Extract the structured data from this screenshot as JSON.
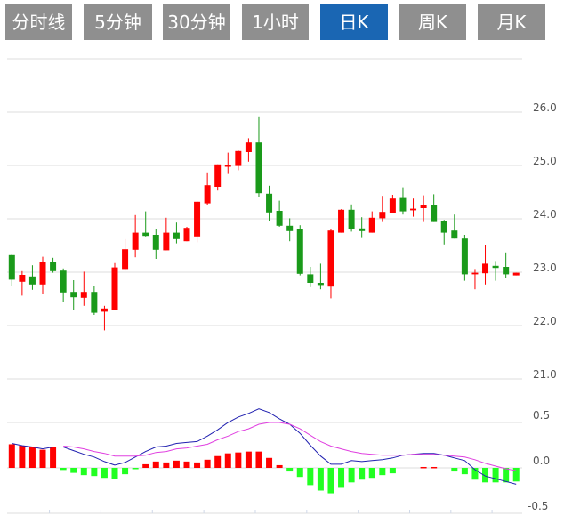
{
  "tabs": [
    {
      "label": "分时线",
      "active": false
    },
    {
      "label": "5分钟",
      "active": false
    },
    {
      "label": "30分钟",
      "active": false
    },
    {
      "label": "1小时",
      "active": false
    },
    {
      "label": "日K",
      "active": true
    },
    {
      "label": "周K",
      "active": false
    },
    {
      "label": "月K",
      "active": false
    }
  ],
  "colors": {
    "tab_bg": "#8f8f8f",
    "tab_active_bg": "#1a66b3",
    "up": "#ff0000",
    "down": "#1a9a1a",
    "hist_up": "#ff0000",
    "hist_down": "#22ff22",
    "dif": "#2020b0",
    "dea": "#e040e0",
    "grid": "#dddddd"
  },
  "chart_data": [
    {
      "type": "candlestick",
      "ylim": [
        21.0,
        27.0
      ],
      "yticks": [
        "21.0",
        "22.0",
        "23.0",
        "24.0",
        "25.0",
        "26.0"
      ],
      "grid": true,
      "candles": [
        [
          23.32,
          22.86,
          23.33,
          22.74
        ],
        [
          22.82,
          22.95,
          23.02,
          22.56
        ],
        [
          22.92,
          22.77,
          23.13,
          22.67
        ],
        [
          22.77,
          23.2,
          23.29,
          22.6
        ],
        [
          23.2,
          23.02,
          23.27,
          22.99
        ],
        [
          23.03,
          22.62,
          23.07,
          22.44
        ],
        [
          22.63,
          22.53,
          22.85,
          22.29
        ],
        [
          22.52,
          22.63,
          23.01,
          22.37
        ],
        [
          22.63,
          22.24,
          22.74,
          22.2
        ],
        [
          22.26,
          22.32,
          22.37,
          21.91
        ],
        [
          22.3,
          23.09,
          23.17,
          22.3
        ],
        [
          23.06,
          23.43,
          23.62,
          23.03
        ],
        [
          23.42,
          23.74,
          24.07,
          23.28
        ],
        [
          23.74,
          23.68,
          24.14,
          23.67
        ],
        [
          23.7,
          23.42,
          23.81,
          23.25
        ],
        [
          23.41,
          23.74,
          24.02,
          23.41
        ],
        [
          23.74,
          23.62,
          23.93,
          23.54
        ],
        [
          23.58,
          23.83,
          23.85,
          23.58
        ],
        [
          23.67,
          24.32,
          24.33,
          23.56
        ],
        [
          24.29,
          24.63,
          24.87,
          24.25
        ],
        [
          24.6,
          25.02,
          25.02,
          24.53
        ],
        [
          24.98,
          25.0,
          25.24,
          24.84
        ],
        [
          24.99,
          25.27,
          25.28,
          24.91
        ],
        [
          25.25,
          25.43,
          25.51,
          25.07
        ],
        [
          25.43,
          24.48,
          25.92,
          24.41
        ],
        [
          24.47,
          24.12,
          24.62,
          23.96
        ],
        [
          24.15,
          23.87,
          24.34,
          23.85
        ],
        [
          23.87,
          23.77,
          24.01,
          23.58
        ],
        [
          23.8,
          22.97,
          23.88,
          22.94
        ],
        [
          22.96,
          22.8,
          23.1,
          22.72
        ],
        [
          22.8,
          22.76,
          23.16,
          22.68
        ],
        [
          22.73,
          23.78,
          23.8,
          22.51
        ],
        [
          23.74,
          24.17,
          24.18,
          23.74
        ],
        [
          24.17,
          23.81,
          24.27,
          23.76
        ],
        [
          23.82,
          23.77,
          24.03,
          23.64
        ],
        [
          23.74,
          24.02,
          24.14,
          23.74
        ],
        [
          24.01,
          24.13,
          24.43,
          23.94
        ],
        [
          24.1,
          24.38,
          24.45,
          24.1
        ],
        [
          24.39,
          24.14,
          24.59,
          24.08
        ],
        [
          24.16,
          24.19,
          24.38,
          24.04
        ],
        [
          24.2,
          24.26,
          24.44,
          23.94
        ],
        [
          24.26,
          23.94,
          24.46,
          23.94
        ],
        [
          23.96,
          23.74,
          23.98,
          23.52
        ],
        [
          23.78,
          23.63,
          24.08,
          23.63
        ],
        [
          23.63,
          22.96,
          23.7,
          22.84
        ],
        [
          22.96,
          22.99,
          23.06,
          22.68
        ],
        [
          22.98,
          23.16,
          23.51,
          22.77
        ],
        [
          23.12,
          23.08,
          23.21,
          22.84
        ],
        [
          23.1,
          22.96,
          23.37,
          22.89
        ],
        [
          22.94,
          22.99,
          22.99,
          22.94
        ]
      ],
      "candle_fields": [
        "open",
        "close",
        "high",
        "low"
      ]
    },
    {
      "type": "macd",
      "ylim": [
        -0.5,
        1.0
      ],
      "yticks": [
        "-0.5",
        "0.0",
        "0.5"
      ],
      "grid": true,
      "histogram": [
        0.26,
        0.245,
        0.23,
        0.2,
        0.23,
        -0.023,
        -0.055,
        -0.08,
        -0.09,
        -0.11,
        -0.12,
        -0.07,
        -0.01,
        0.04,
        0.07,
        0.06,
        0.08,
        0.07,
        0.06,
        0.09,
        0.13,
        0.16,
        0.17,
        0.18,
        0.18,
        0.11,
        0.03,
        -0.04,
        -0.1,
        -0.19,
        -0.25,
        -0.28,
        -0.22,
        -0.16,
        -0.13,
        -0.11,
        -0.08,
        -0.06,
        0,
        0,
        0.01,
        0.01,
        0,
        -0.04,
        -0.07,
        -0.13,
        -0.16,
        -0.16,
        -0.16,
        -0.15
      ],
      "dif": [
        0.27,
        0.245,
        0.23,
        0.21,
        0.23,
        0.23,
        0.19,
        0.15,
        0.12,
        0.07,
        0.03,
        0.06,
        0.12,
        0.18,
        0.23,
        0.24,
        0.27,
        0.28,
        0.29,
        0.35,
        0.42,
        0.5,
        0.56,
        0.6,
        0.65,
        0.61,
        0.54,
        0.48,
        0.38,
        0.25,
        0.13,
        0.04,
        0.04,
        0.08,
        0.07,
        0.08,
        0.09,
        0.11,
        0.14,
        0.15,
        0.16,
        0.16,
        0.14,
        0.11,
        0.08,
        -0.02,
        -0.09,
        -0.12,
        -0.15,
        -0.18
      ],
      "dea": [
        null,
        null,
        null,
        null,
        null,
        0.24,
        0.23,
        0.21,
        0.18,
        0.16,
        0.13,
        0.13,
        0.13,
        0.14,
        0.17,
        0.18,
        0.21,
        0.22,
        0.24,
        0.26,
        0.31,
        0.35,
        0.4,
        0.43,
        0.48,
        0.5,
        0.5,
        0.48,
        0.43,
        0.36,
        0.29,
        0.24,
        0.21,
        0.18,
        0.16,
        0.15,
        0.14,
        0.14,
        0.14,
        0.15,
        0.15,
        0.15,
        0.14,
        0.13,
        0.12,
        0.09,
        0.05,
        0.02,
        -0.01,
        -0.03
      ]
    }
  ]
}
